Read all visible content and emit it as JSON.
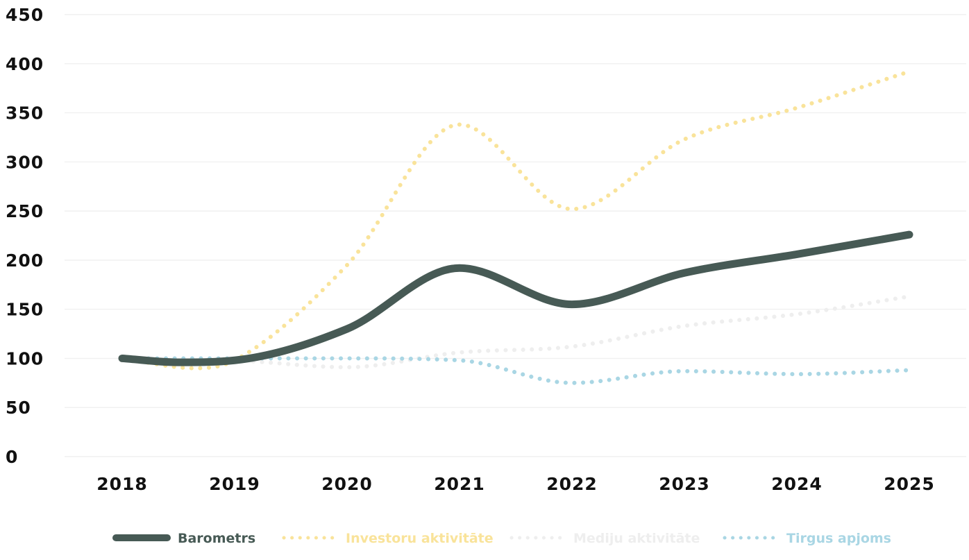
{
  "chart_data": {
    "type": "line",
    "title": "",
    "xlabel": "",
    "ylabel": "",
    "ylim": [
      0,
      450
    ],
    "y_ticks": [
      0,
      50,
      100,
      150,
      200,
      250,
      300,
      350,
      400,
      450
    ],
    "x_ticks": [
      2018,
      2019,
      2020,
      2021,
      2022,
      2023,
      2024,
      2025
    ],
    "xlim": [
      2017.52,
      2025.4
    ],
    "grid": true,
    "legend_position": "bottom",
    "series": [
      {
        "name": "Barometrs",
        "color": "#475a55",
        "style": "solid",
        "x": [
          2018,
          2018.5,
          2019,
          2020,
          2021,
          2022,
          2023,
          2024,
          2025
        ],
        "y": [
          100,
          96,
          98,
          130,
          192,
          155,
          187,
          206,
          226
        ]
      },
      {
        "name": "Investoru aktivitāte",
        "color": "#f9e39a",
        "style": "dotted",
        "x": [
          2018,
          2018.65,
          2019,
          2020,
          2021,
          2022,
          2023,
          2024,
          2025
        ],
        "y": [
          100,
          90,
          98,
          195,
          338,
          252,
          323,
          355,
          392
        ]
      },
      {
        "name": "Mediju aktivitāte",
        "color": "#eeeeee",
        "style": "dotted",
        "x": [
          2018,
          2019,
          2020,
          2021,
          2022,
          2023,
          2024,
          2025
        ],
        "y": [
          100,
          98,
          91,
          106,
          112,
          133,
          145,
          163
        ]
      },
      {
        "name": "Tirgus apjoms",
        "color": "#a9d6e4",
        "style": "dotted",
        "x": [
          2018,
          2019,
          2020,
          2021,
          2022,
          2023,
          2024,
          2025
        ],
        "y": [
          100,
          100,
          100,
          98,
          75,
          87,
          84,
          88
        ]
      }
    ]
  }
}
